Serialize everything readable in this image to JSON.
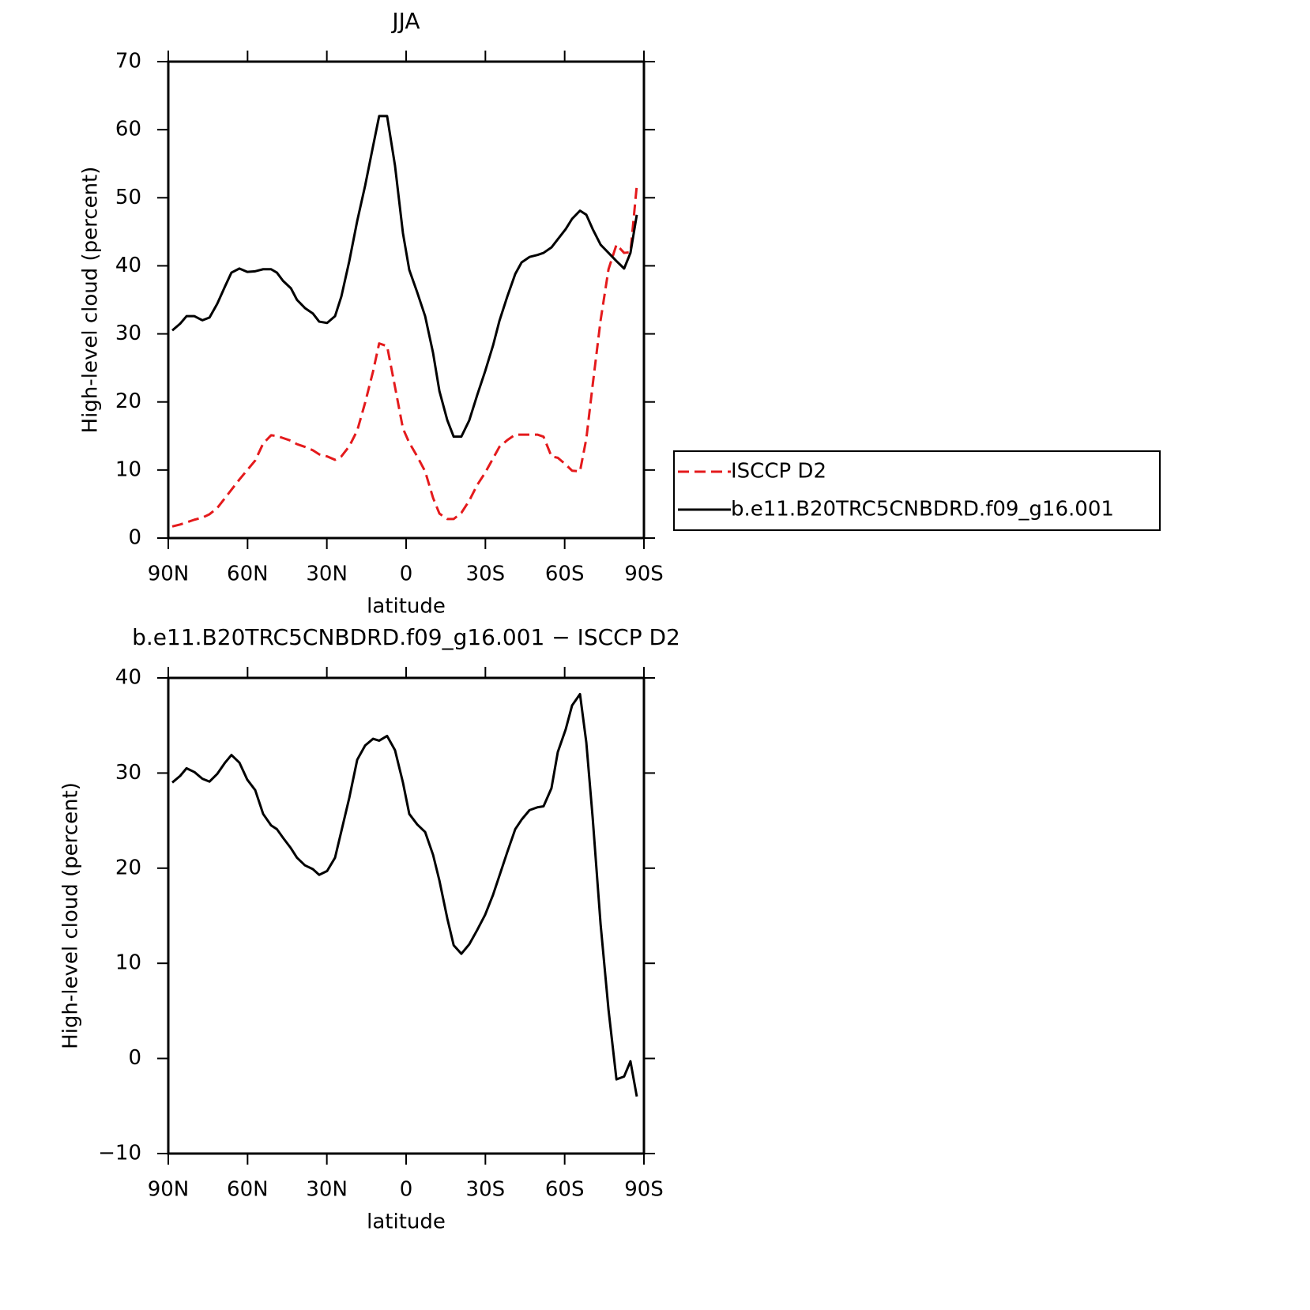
{
  "chart_data": [
    {
      "type": "line",
      "title": "JJA",
      "xlabel": "latitude",
      "ylabel": "High-level cloud (percent)",
      "xlim": [
        90,
        -90
      ],
      "xticks": [
        {
          "value": 90,
          "label": "90N"
        },
        {
          "value": 60,
          "label": "60N"
        },
        {
          "value": 30,
          "label": "30N"
        },
        0,
        {
          "value": -30,
          "label": "30S"
        },
        {
          "value": -60,
          "label": "60S"
        },
        {
          "value": -90,
          "label": "90S"
        }
      ],
      "ylim": [
        0,
        70
      ],
      "yticks": [
        0,
        10,
        20,
        30,
        40,
        50,
        60,
        70
      ],
      "legend": "right",
      "x": [
        88.5,
        85.5,
        83.1,
        80.1,
        77.1,
        74.4,
        71.5,
        68.5,
        66.1,
        63.1,
        60.1,
        57.1,
        54.1,
        51.1,
        48.9,
        46.6,
        43.6,
        41.3,
        38.3,
        35.3,
        32.9,
        29.9,
        26.9,
        24.5,
        21.5,
        18.5,
        15.5,
        12.5,
        10.2,
        7.2,
        4.2,
        1.2,
        -1.2,
        -4.2,
        -7.2,
        -10.2,
        -12.6,
        -15.6,
        -18.0,
        -20.9,
        -23.9,
        -26.9,
        -29.9,
        -32.9,
        -35.3,
        -38.3,
        -41.3,
        -43.7,
        -46.7,
        -49.7,
        -52.0,
        -55.0,
        -57.4,
        -60.4,
        -62.8,
        -65.8,
        -68.2,
        -70.6,
        -73.6,
        -76.6,
        -79.6,
        -82.5,
        -84.9,
        -87.3
      ],
      "series": [
        {
          "name": "ISCCP D2",
          "color": "#e41a1c",
          "linestyle": "dashed",
          "values": [
            1.7,
            2.0,
            2.3,
            2.7,
            3.0,
            3.5,
            4.4,
            5.9,
            7.1,
            8.6,
            10.0,
            11.4,
            13.9,
            15.1,
            15.0,
            14.7,
            14.3,
            13.8,
            13.4,
            12.9,
            12.3,
            12.0,
            11.5,
            12.0,
            13.5,
            15.8,
            19.9,
            24.5,
            28.6,
            28.2,
            22.2,
            16.1,
            14.0,
            12.0,
            9.8,
            5.9,
            3.6,
            2.8,
            2.8,
            3.7,
            5.5,
            7.8,
            9.6,
            11.7,
            13.4,
            14.4,
            15.2,
            15.2,
            15.2,
            15.2,
            14.9,
            12.0,
            11.8,
            10.8,
            9.9,
            9.8,
            14.6,
            22.5,
            32.0,
            39.5,
            43.1,
            41.9,
            42.0,
            51.8
          ]
        },
        {
          "name": "b.e11.B20TRC5CNBDRD.f09_g16.001",
          "color": "#000000",
          "linestyle": "solid",
          "values": [
            30.5,
            31.5,
            32.6,
            32.6,
            32.0,
            32.4,
            34.4,
            37.0,
            39.0,
            39.6,
            39.1,
            39.2,
            39.5,
            39.5,
            39.0,
            37.8,
            36.7,
            35.0,
            33.8,
            33.0,
            31.8,
            31.6,
            32.6,
            35.5,
            40.7,
            46.6,
            51.8,
            57.6,
            62.0,
            62.0,
            54.7,
            44.8,
            39.4,
            36.1,
            32.6,
            27.2,
            21.6,
            17.3,
            14.9,
            14.9,
            17.3,
            21.0,
            24.5,
            28.3,
            31.9,
            35.5,
            38.8,
            40.5,
            41.3,
            41.6,
            41.9,
            42.7,
            43.9,
            45.4,
            46.9,
            48.1,
            47.5,
            45.4,
            43.1,
            41.9,
            40.7,
            39.6,
            41.9,
            47.5
          ]
        }
      ]
    },
    {
      "type": "line",
      "title": "b.e11.B20TRC5CNBDRD.f09_g16.001 − ISCCP D2",
      "xlabel": "latitude",
      "ylabel": "High-level cloud (percent)",
      "xlim": [
        90,
        -90
      ],
      "xticks": [
        {
          "value": 90,
          "label": "90N"
        },
        {
          "value": 60,
          "label": "60N"
        },
        {
          "value": 30,
          "label": "30N"
        },
        0,
        {
          "value": -30,
          "label": "30S"
        },
        {
          "value": -60,
          "label": "60S"
        },
        {
          "value": -90,
          "label": "90S"
        }
      ],
      "ylim": [
        -10,
        40
      ],
      "yticks": [
        {
          "value": -10,
          "label": "−10"
        },
        0,
        10,
        20,
        30,
        40
      ],
      "x": [
        88.5,
        85.5,
        83.1,
        80.1,
        77.1,
        74.4,
        71.5,
        68.5,
        66.1,
        63.1,
        60.1,
        57.1,
        54.1,
        51.1,
        48.9,
        46.6,
        43.6,
        41.3,
        38.3,
        35.3,
        32.9,
        29.9,
        26.9,
        24.5,
        21.5,
        18.5,
        15.5,
        12.5,
        10.2,
        7.2,
        4.2,
        1.2,
        -1.2,
        -4.2,
        -7.2,
        -10.2,
        -12.6,
        -15.6,
        -18.0,
        -20.9,
        -23.9,
        -26.9,
        -29.9,
        -32.9,
        -35.3,
        -38.3,
        -41.3,
        -43.7,
        -46.7,
        -49.7,
        -52.0,
        -55.0,
        -57.4,
        -60.4,
        -62.8,
        -65.8,
        -68.2,
        -70.6,
        -73.6,
        -76.6,
        -79.6,
        -82.5,
        -84.9,
        -87.3
      ],
      "series": [
        {
          "color": "#000000",
          "linestyle": "solid",
          "values": [
            29.0,
            29.7,
            30.5,
            30.1,
            29.4,
            29.1,
            29.9,
            31.1,
            31.9,
            31.1,
            29.3,
            28.2,
            25.7,
            24.5,
            24.1,
            23.2,
            22.1,
            21.1,
            20.3,
            19.9,
            19.3,
            19.7,
            21.1,
            23.9,
            27.4,
            31.4,
            32.9,
            33.6,
            33.4,
            33.9,
            32.4,
            29.0,
            25.7,
            24.6,
            23.8,
            21.4,
            18.7,
            14.7,
            11.9,
            11.0,
            12.0,
            13.5,
            15.1,
            17.2,
            19.2,
            21.7,
            24.1,
            25.1,
            26.1,
            26.4,
            26.5,
            28.4,
            32.2,
            34.6,
            37.1,
            38.3,
            33.2,
            25.3,
            14.1,
            5.1,
            -2.2,
            -1.9,
            -0.3,
            -4.0
          ]
        }
      ]
    }
  ]
}
